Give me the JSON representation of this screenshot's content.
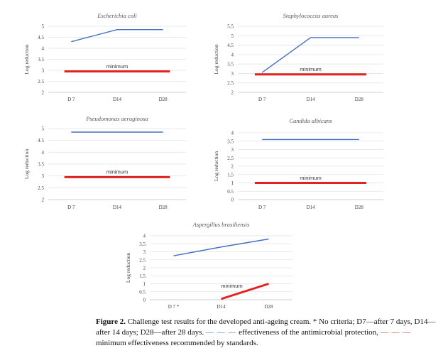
{
  "chart_data": [
    {
      "type": "line",
      "title": "Escherichia coli",
      "ylabel": "Log reduction",
      "categories": [
        "D 7",
        "D14",
        "D28"
      ],
      "ylim": [
        2,
        5
      ],
      "yticks": [
        "2",
        "2.5",
        "3",
        "3.5",
        "4",
        "4.5",
        "5"
      ],
      "series": [
        {
          "name": "effectiveness",
          "values": [
            4.3,
            4.85,
            4.85
          ],
          "color": "#4472c4"
        },
        {
          "name": "minimum",
          "values": [
            2.95,
            2.95,
            2.95
          ],
          "color": "#e32222"
        }
      ],
      "annotation": "minimum"
    },
    {
      "type": "line",
      "title": "Staphylococcus aureus",
      "ylabel": "Log reduction",
      "categories": [
        "D 7",
        "D14",
        "D28"
      ],
      "ylim": [
        2,
        5.5
      ],
      "yticks": [
        "2",
        "2.5",
        "3",
        "3.5",
        "4",
        "4.5",
        "5",
        "5.5"
      ],
      "series": [
        {
          "name": "effectiveness",
          "values": [
            3.05,
            4.9,
            4.9
          ],
          "color": "#4472c4"
        },
        {
          "name": "minimum",
          "values": [
            2.95,
            2.95,
            2.95
          ],
          "color": "#e32222"
        }
      ],
      "annotation": "minimum"
    },
    {
      "type": "line",
      "title": "Pseudomonas aeruginosa",
      "ylabel": "Log reduction",
      "categories": [
        "D 7",
        "D14",
        "D28"
      ],
      "ylim": [
        2,
        5
      ],
      "yticks": [
        "2",
        "2.5",
        "3",
        "3.5",
        "4",
        "4.5",
        "5"
      ],
      "series": [
        {
          "name": "effectiveness",
          "values": [
            4.85,
            4.85,
            4.85
          ],
          "color": "#4472c4"
        },
        {
          "name": "minimum",
          "values": [
            2.95,
            2.95,
            2.95
          ],
          "color": "#e32222"
        }
      ],
      "annotation": "minimum"
    },
    {
      "type": "line",
      "title": "Candida albicans",
      "ylabel": "Log reduction",
      "categories": [
        "D 7",
        "D14",
        "D28"
      ],
      "ylim": [
        0,
        4
      ],
      "yticks": [
        "0",
        "0.5",
        "1",
        "1.5",
        "2",
        "2.5",
        "3",
        "3.5",
        "4"
      ],
      "series": [
        {
          "name": "effectiveness",
          "values": [
            3.6,
            3.6,
            3.6
          ],
          "color": "#4472c4"
        },
        {
          "name": "minimum",
          "values": [
            1.0,
            1.0,
            1.0
          ],
          "color": "#e32222"
        }
      ],
      "annotation": "minimum"
    },
    {
      "type": "line",
      "title": "Aspergillus brasiliensis",
      "ylabel": "Log reduction",
      "categories": [
        "D 7 *",
        "D14",
        "D28"
      ],
      "ylim": [
        0,
        4
      ],
      "yticks": [
        "0",
        "0.5",
        "1",
        "1.5",
        "2",
        "2.5",
        "3",
        "3.5",
        "4"
      ],
      "series": [
        {
          "name": "effectiveness",
          "values": [
            2.75,
            3.3,
            3.8
          ],
          "color": "#4472c4"
        },
        {
          "name": "minimum",
          "values": [
            null,
            0.05,
            1.0
          ],
          "color": "#e32222"
        }
      ],
      "annotation": "minimum"
    }
  ],
  "caption": {
    "figure_label": "Figure 2.",
    "text": " Challenge test results for the developed anti-ageing cream. * No criteria; D7—after 7 days, D14—after 14 days; D28—after 28 days. ",
    "legend_blue_symbol": "— — —",
    "legend_blue_text": " effectiveness of the antimicrobial protection, ",
    "legend_red_symbol": "— — —",
    "legend_red_text": " minimum effectiveness recommended by standards."
  }
}
